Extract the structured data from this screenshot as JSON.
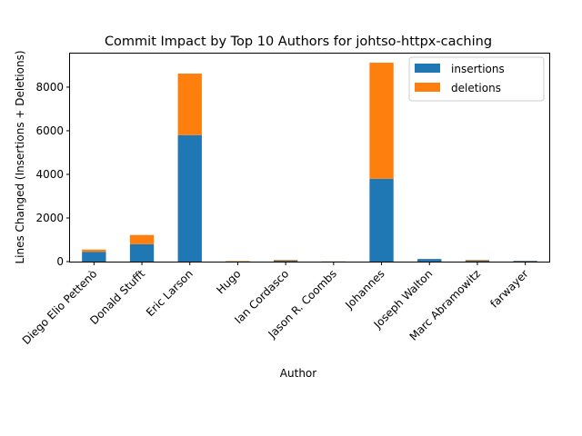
{
  "chart_data": {
    "type": "bar",
    "stacked": true,
    "title": "Commit Impact by Top 10 Authors for johtso-httpx-caching",
    "xlabel": "Author",
    "ylabel": "Lines Changed (Insertions + Deletions)",
    "categories": [
      "Diego Elio Pettenò",
      "Donald Stufft",
      "Eric Larson",
      "Hugo",
      "Ian Cordasco",
      "Jason R. Coombs",
      "Johannes",
      "Joseph Walton",
      "Marc Abramowitz",
      "farwayer"
    ],
    "series": [
      {
        "name": "insertions",
        "color": "#1f77b4",
        "values": [
          450,
          800,
          5800,
          10,
          40,
          5,
          3800,
          120,
          40,
          30
        ]
      },
      {
        "name": "deletions",
        "color": "#ff7f0e",
        "values": [
          100,
          420,
          2820,
          20,
          40,
          5,
          5320,
          5,
          40,
          10
        ]
      }
    ],
    "ylim": [
      0,
      9580
    ],
    "yticks": [
      0,
      2000,
      4000,
      6000,
      8000
    ],
    "ytick_labels": [
      "0",
      "2000",
      "4000",
      "6000",
      "8000"
    ],
    "legend_position": "top-right",
    "grid": false
  }
}
